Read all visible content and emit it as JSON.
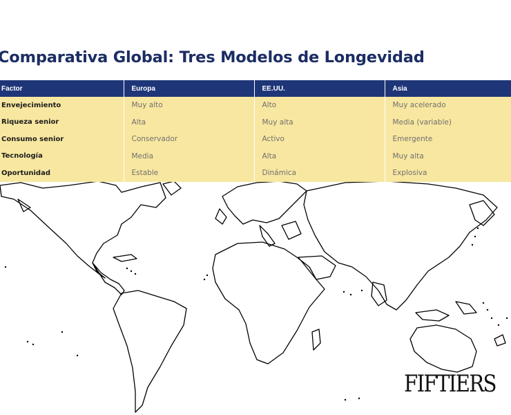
{
  "title": "Comparativa Global: Tres Modelos de Longevidad",
  "table": {
    "headers": [
      "Factor",
      "Europa",
      "EE.UU.",
      "Asia"
    ],
    "rows": [
      [
        "Envejecimiento",
        "Muy alto",
        "Alto",
        "Muy acelerado"
      ],
      [
        "Riqueza senior",
        "Alta",
        "Muy alta",
        "Media (variable)"
      ],
      [
        "Consumo senior",
        "Conservador",
        "Activo",
        "Emergente"
      ],
      [
        "Tecnología",
        "Media",
        "Alta",
        "Muy alta"
      ],
      [
        "Oportunidad",
        "Estable",
        "Dinámica",
        "Explosiva"
      ]
    ]
  },
  "logo": "FIFTIERS",
  "colors": {
    "header_bg": "#1e3678",
    "row_bg": "#f8e7a0",
    "title": "#1c2d64"
  }
}
